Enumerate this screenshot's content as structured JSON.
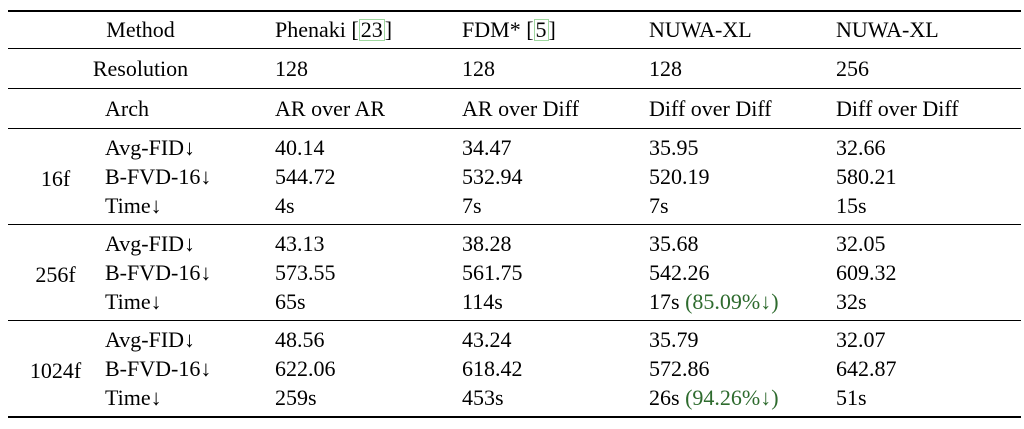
{
  "table": {
    "header": {
      "method_label": "Method",
      "cite_open": "[",
      "cite_close": "]",
      "methods": [
        {
          "name": "Phenaki",
          "cite": "23"
        },
        {
          "name": "FDM*",
          "cite": "5"
        },
        {
          "name": "NUWA-XL",
          "cite": ""
        },
        {
          "name": "NUWA-XL",
          "cite": ""
        }
      ],
      "resolution_label": "Resolution",
      "resolutions": [
        "128",
        "128",
        "128",
        "256"
      ],
      "arch_label": "Arch",
      "archs": [
        "AR over AR",
        "AR over Diff",
        "Diff over Diff",
        "Diff over Diff"
      ]
    },
    "metric_labels": [
      "Avg-FID↓",
      "B-FVD-16↓",
      "Time↓"
    ],
    "groups": [
      {
        "label": "16f",
        "avg_fid": [
          "40.14",
          "34.47",
          "35.95",
          "32.66"
        ],
        "b_fvd": [
          "544.72",
          "532.94",
          "520.19",
          "580.21"
        ],
        "time": [
          {
            "t": "4s",
            "saving": ""
          },
          {
            "t": "7s",
            "saving": ""
          },
          {
            "t": "7s",
            "saving": ""
          },
          {
            "t": "15s",
            "saving": ""
          }
        ]
      },
      {
        "label": "256f",
        "avg_fid": [
          "43.13",
          "38.28",
          "35.68",
          "32.05"
        ],
        "b_fvd": [
          "573.55",
          "561.75",
          "542.26",
          "609.32"
        ],
        "time": [
          {
            "t": "65s",
            "saving": ""
          },
          {
            "t": "114s",
            "saving": ""
          },
          {
            "t": "17s",
            "saving": "(85.09%↓)"
          },
          {
            "t": "32s",
            "saving": ""
          }
        ]
      },
      {
        "label": "1024f",
        "avg_fid": [
          "48.56",
          "43.24",
          "35.79",
          "32.07"
        ],
        "b_fvd": [
          "622.06",
          "618.42",
          "572.86",
          "642.87"
        ],
        "time": [
          {
            "t": "259s",
            "saving": ""
          },
          {
            "t": "453s",
            "saving": ""
          },
          {
            "t": "26s",
            "saving": "(94.26%↓)"
          },
          {
            "t": "51s",
            "saving": ""
          }
        ]
      }
    ],
    "colors": {
      "highlight_green": "#2e6b2e",
      "cite_border": "#9fd89f",
      "rule_color": "#000000"
    }
  }
}
